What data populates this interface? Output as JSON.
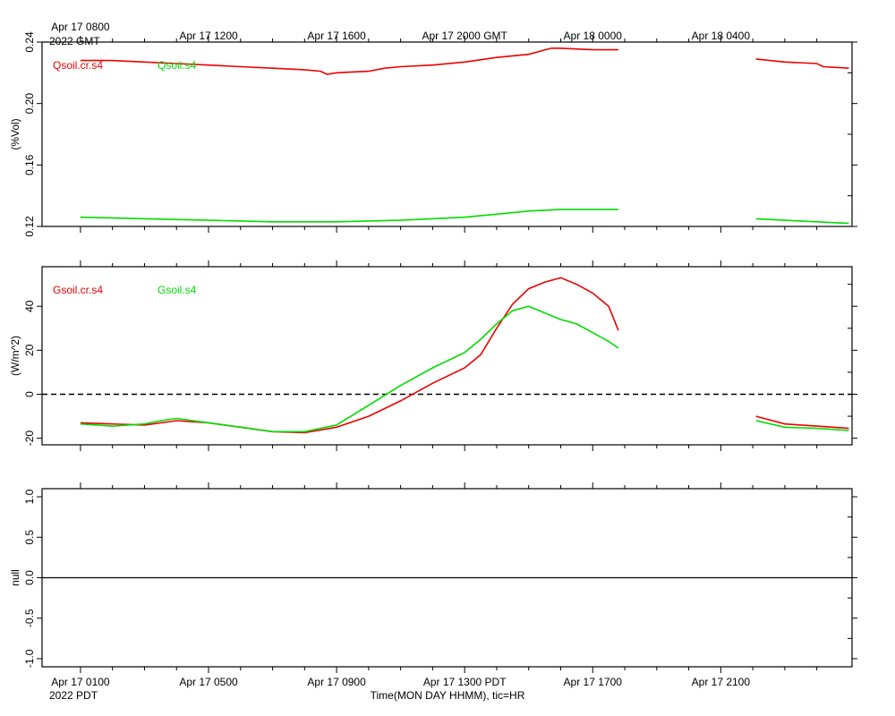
{
  "top_axis": {
    "ticks": [
      "Apr 17 0800",
      "Apr 17 1200",
      "Apr 17 1600",
      "Apr 17 2000 GMT",
      "Apr 18 0000",
      "Apr 18 0400"
    ],
    "year_label": "2022 GMT"
  },
  "bottom_axis": {
    "ticks": [
      "Apr 17 0100",
      "Apr 17 0500",
      "Apr 17 0900",
      "Apr 17 1300 PDT",
      "Apr 17 1700",
      "Apr 17 2100"
    ],
    "year_label": "2022 PDT",
    "title": "Time(MON DAY HHMM), tic=HR"
  },
  "colors": {
    "red": "#ee0000",
    "green": "#00dd00"
  },
  "chart_data": [
    {
      "type": "line",
      "ylabel": "(%Vol)",
      "ylim": [
        0.12,
        0.24
      ],
      "yticks": [
        "0.12",
        "0.16",
        "0.20",
        "0.24"
      ],
      "x_unit": "hours since Apr 17 0000 PDT",
      "xlim": [
        0,
        24
      ],
      "series": [
        {
          "name": "Qsoil.cr.s4",
          "color": "red",
          "segments": [
            [
              [
                0,
                0.228
              ],
              [
                1,
                0.228
              ],
              [
                2,
                0.227
              ],
              [
                3,
                0.226
              ],
              [
                4,
                0.225
              ],
              [
                5,
                0.224
              ],
              [
                6,
                0.223
              ],
              [
                7,
                0.222
              ],
              [
                7.5,
                0.221
              ],
              [
                7.7,
                0.219
              ],
              [
                8,
                0.22
              ],
              [
                9,
                0.221
              ],
              [
                9.5,
                0.223
              ],
              [
                10,
                0.224
              ],
              [
                11,
                0.225
              ],
              [
                12,
                0.227
              ],
              [
                13,
                0.23
              ],
              [
                14,
                0.232
              ],
              [
                14.7,
                0.236
              ],
              [
                15,
                0.236
              ],
              [
                16,
                0.235
              ],
              [
                16.8,
                0.235
              ]
            ],
            [
              [
                21.1,
                0.229
              ],
              [
                22,
                0.227
              ],
              [
                23,
                0.226
              ],
              [
                23.2,
                0.224
              ],
              [
                24,
                0.223
              ]
            ]
          ]
        },
        {
          "name": "Qsoil.s4",
          "color": "green",
          "segments": [
            [
              [
                0,
                0.126
              ],
              [
                2,
                0.125
              ],
              [
                4,
                0.124
              ],
              [
                6,
                0.123
              ],
              [
                8,
                0.123
              ],
              [
                10,
                0.124
              ],
              [
                12,
                0.126
              ],
              [
                13,
                0.128
              ],
              [
                14,
                0.13
              ],
              [
                15,
                0.131
              ],
              [
                16,
                0.131
              ],
              [
                16.8,
                0.131
              ]
            ],
            [
              [
                21.1,
                0.125
              ],
              [
                22,
                0.124
              ],
              [
                24,
                0.122
              ]
            ]
          ]
        }
      ]
    },
    {
      "type": "line",
      "ylabel": "(W/m^2)",
      "ylim": [
        -23,
        58
      ],
      "yticks": [
        "-20",
        "0",
        "20",
        "40"
      ],
      "reference_line": 0,
      "x_unit": "hours since Apr 17 0000 PDT",
      "xlim": [
        0,
        24
      ],
      "series": [
        {
          "name": "Gsoil.cr.s4",
          "color": "red",
          "segments": [
            [
              [
                0,
                -13
              ],
              [
                1,
                -13.5
              ],
              [
                2,
                -14
              ],
              [
                3,
                -12
              ],
              [
                4,
                -13
              ],
              [
                5,
                -15
              ],
              [
                6,
                -17
              ],
              [
                7,
                -17.5
              ],
              [
                8,
                -15
              ],
              [
                9,
                -10
              ],
              [
                10,
                -3
              ],
              [
                11,
                5
              ],
              [
                12,
                12
              ],
              [
                12.5,
                18
              ],
              [
                13,
                30
              ],
              [
                13.5,
                41
              ],
              [
                14,
                48
              ],
              [
                14.5,
                51
              ],
              [
                15,
                53
              ],
              [
                15.5,
                50
              ],
              [
                16,
                46
              ],
              [
                16.5,
                40
              ],
              [
                16.8,
                29
              ]
            ],
            [
              [
                21.1,
                -10
              ],
              [
                22,
                -13.5
              ],
              [
                23,
                -14.5
              ],
              [
                24,
                -15.5
              ]
            ]
          ]
        },
        {
          "name": "Gsoil.s4",
          "color": "green",
          "segments": [
            [
              [
                0,
                -13.5
              ],
              [
                1,
                -14.5
              ],
              [
                2,
                -13.5
              ],
              [
                2.5,
                -12
              ],
              [
                3,
                -11
              ],
              [
                4,
                -13
              ],
              [
                5,
                -15
              ],
              [
                6,
                -17
              ],
              [
                7,
                -17
              ],
              [
                8,
                -14
              ],
              [
                9,
                -5
              ],
              [
                10,
                4
              ],
              [
                11,
                12
              ],
              [
                12,
                19
              ],
              [
                12.5,
                25
              ],
              [
                13,
                32
              ],
              [
                13.5,
                38
              ],
              [
                14,
                40
              ],
              [
                14.5,
                37
              ],
              [
                15,
                34
              ],
              [
                15.5,
                32
              ],
              [
                16,
                28
              ],
              [
                16.5,
                24
              ],
              [
                16.8,
                21
              ]
            ],
            [
              [
                21.1,
                -12
              ],
              [
                22,
                -15
              ],
              [
                23,
                -15.5
              ],
              [
                24,
                -16.5
              ]
            ]
          ]
        }
      ]
    },
    {
      "type": "line",
      "ylabel": "null",
      "ylim": [
        -1.1,
        1.1
      ],
      "yticks": [
        "-1.0",
        "-0.5",
        "0.0",
        "0.5",
        "1.0"
      ],
      "reference_line": 0,
      "series": []
    }
  ]
}
